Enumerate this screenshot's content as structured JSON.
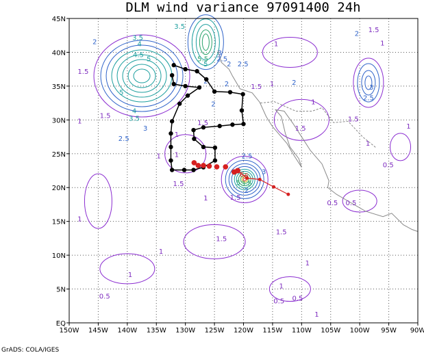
{
  "chart_data": {
    "type": "contour-map",
    "title": "DLM wind variance 97091400 24h",
    "credit": "GrADS: COLA/IGES",
    "x_ticks": [
      "150W",
      "145W",
      "140W",
      "135W",
      "130W",
      "125W",
      "120W",
      "115W",
      "110W",
      "105W",
      "100W",
      "95W",
      "90W"
    ],
    "y_ticks": [
      "EQ",
      "5N",
      "10N",
      "15N",
      "20N",
      "25N",
      "30N",
      "35N",
      "40N",
      "45N"
    ],
    "xlim": [
      -150,
      -90
    ],
    "ylim": [
      0,
      45
    ],
    "grid": true,
    "contour_labels": [
      {
        "text": "3.5",
        "lon": -138.2,
        "lat": 41.8,
        "color": "#1b9e9e"
      },
      {
        "text": "4",
        "lon": -137.9,
        "lat": 40.9,
        "color": "#1b9e9e"
      },
      {
        "text": "4.5",
        "lon": -138.1,
        "lat": 39.3,
        "color": "#1b9e9e"
      },
      {
        "text": "5",
        "lon": -136.3,
        "lat": 38.7,
        "color": "#1b9e9e"
      },
      {
        "text": "5",
        "lon": -141.0,
        "lat": 33.7,
        "color": "#1b9e9e"
      },
      {
        "text": "4",
        "lon": -138.8,
        "lat": 31.0,
        "color": "#1b9e9e"
      },
      {
        "text": "3.5",
        "lon": -138.8,
        "lat": 29.9,
        "color": "#1b9e9e"
      },
      {
        "text": "3",
        "lon": -136.9,
        "lat": 28.4,
        "color": "#2f63c9"
      },
      {
        "text": "2.5",
        "lon": -140.6,
        "lat": 26.9,
        "color": "#2f63c9"
      },
      {
        "text": "2",
        "lon": -145.6,
        "lat": 41.2,
        "color": "#2f63c9"
      },
      {
        "text": "1.5",
        "lon": -147.6,
        "lat": 36.8,
        "color": "#7d2bbf"
      },
      {
        "text": "1.5",
        "lon": -143.8,
        "lat": 30.3,
        "color": "#7d2bbf"
      },
      {
        "text": "1",
        "lon": -148.2,
        "lat": 29.5,
        "color": "#7d2bbf"
      },
      {
        "text": "1",
        "lon": -148.2,
        "lat": 15.0,
        "color": "#7d2bbf"
      },
      {
        "text": "3.5",
        "lon": -131.0,
        "lat": 43.5,
        "color": "#1b9e9e"
      },
      {
        "text": "5.5",
        "lon": -127.0,
        "lat": 38.7,
        "color": "#2aa36b"
      },
      {
        "text": "5",
        "lon": -126.5,
        "lat": 37.9,
        "color": "#1b9e9e"
      },
      {
        "text": "3",
        "lon": -124.1,
        "lat": 39.6,
        "color": "#2f63c9"
      },
      {
        "text": "2.5",
        "lon": -123.7,
        "lat": 38.7,
        "color": "#2f63c9"
      },
      {
        "text": "2",
        "lon": -122.5,
        "lat": 37.9,
        "color": "#2f63c9"
      },
      {
        "text": "2.5",
        "lon": -120.1,
        "lat": 37.9,
        "color": "#2f63c9"
      },
      {
        "text": "2",
        "lon": -126.5,
        "lat": 35.4,
        "color": "#2f63c9"
      },
      {
        "text": "2",
        "lon": -125.2,
        "lat": 32.0,
        "color": "#2f63c9"
      },
      {
        "text": "2",
        "lon": -122.9,
        "lat": 35.0,
        "color": "#2f63c9"
      },
      {
        "text": "1.5",
        "lon": -117.8,
        "lat": 34.6,
        "color": "#7d2bbf"
      },
      {
        "text": "2",
        "lon": -111.3,
        "lat": 35.2,
        "color": "#2f63c9"
      },
      {
        "text": "1",
        "lon": -115.1,
        "lat": 35.0,
        "color": "#7d2bbf"
      },
      {
        "text": "1",
        "lon": -108.0,
        "lat": 32.3,
        "color": "#7d2bbf"
      },
      {
        "text": "1.5",
        "lon": -127.0,
        "lat": 29.2,
        "color": "#7d2bbf"
      },
      {
        "text": "1",
        "lon": -131.5,
        "lat": 27.5,
        "color": "#7d2bbf"
      },
      {
        "text": "1",
        "lon": -134.6,
        "lat": 24.3,
        "color": "#7d2bbf"
      },
      {
        "text": "1",
        "lon": -131.5,
        "lat": 24.5,
        "color": "#7d2bbf"
      },
      {
        "text": "1.5",
        "lon": -131.2,
        "lat": 20.2,
        "color": "#7d2bbf"
      },
      {
        "text": "1",
        "lon": -126.5,
        "lat": 18.1,
        "color": "#7d2bbf"
      },
      {
        "text": "2.5",
        "lon": -119.4,
        "lat": 24.3,
        "color": "#2f63c9"
      },
      {
        "text": "3",
        "lon": -116.5,
        "lat": 22.0,
        "color": "#2f63c9"
      },
      {
        "text": "6",
        "lon": -120.3,
        "lat": 21.6,
        "color": "#d62020"
      },
      {
        "text": "6",
        "lon": -119.5,
        "lat": 21.4,
        "color": "#d62020"
      },
      {
        "text": "5",
        "lon": -120.9,
        "lat": 20.4,
        "color": "#2aa36b"
      },
      {
        "text": "3.5",
        "lon": -119.5,
        "lat": 20.3,
        "color": "#2aa36b"
      },
      {
        "text": "2",
        "lon": -119.5,
        "lat": 19.2,
        "color": "#2f63c9"
      },
      {
        "text": "1.5",
        "lon": -121.4,
        "lat": 18.2,
        "color": "#7d2bbf"
      },
      {
        "text": "1.5",
        "lon": -113.5,
        "lat": 13.1,
        "color": "#7d2bbf"
      },
      {
        "text": "1.5",
        "lon": -123.8,
        "lat": 12.1,
        "color": "#7d2bbf"
      },
      {
        "text": "1",
        "lon": -134.2,
        "lat": 10.2,
        "color": "#7d2bbf"
      },
      {
        "text": "1",
        "lon": -139.5,
        "lat": 6.8,
        "color": "#7d2bbf"
      },
      {
        "text": "0.5",
        "lon": -143.9,
        "lat": 3.6,
        "color": "#7d2bbf"
      },
      {
        "text": "0.5",
        "lon": -113.9,
        "lat": 2.9,
        "color": "#7d2bbf"
      },
      {
        "text": "0.5",
        "lon": -110.7,
        "lat": 3.3,
        "color": "#7d2bbf"
      },
      {
        "text": "1",
        "lon": -113.5,
        "lat": 5.1,
        "color": "#7d2bbf"
      },
      {
        "text": "1",
        "lon": -109.0,
        "lat": 8.5,
        "color": "#7d2bbf"
      },
      {
        "text": "1",
        "lon": -107.4,
        "lat": 0.9,
        "color": "#7d2bbf"
      },
      {
        "text": "1.5",
        "lon": -110.2,
        "lat": 28.4,
        "color": "#7d2bbf"
      },
      {
        "text": "0.5",
        "lon": -104.7,
        "lat": 17.4,
        "color": "#7d2bbf"
      },
      {
        "text": "0.5",
        "lon": -101.5,
        "lat": 17.4,
        "color": "#7d2bbf"
      },
      {
        "text": "0.5",
        "lon": -95.1,
        "lat": 23.0,
        "color": "#7d2bbf"
      },
      {
        "text": "1",
        "lon": -98.6,
        "lat": 26.2,
        "color": "#7d2bbf"
      },
      {
        "text": "1",
        "lon": -91.6,
        "lat": 28.7,
        "color": "#7d2bbf"
      },
      {
        "text": "1.5",
        "lon": -101.1,
        "lat": 29.8,
        "color": "#7d2bbf"
      },
      {
        "text": "2.5",
        "lon": -98.5,
        "lat": 32.9,
        "color": "#2f63c9"
      },
      {
        "text": "3",
        "lon": -98.0,
        "lat": 34.5,
        "color": "#2f63c9"
      },
      {
        "text": "2",
        "lon": -100.5,
        "lat": 42.4,
        "color": "#2f63c9"
      },
      {
        "text": "1.5",
        "lon": -97.6,
        "lat": 43.0,
        "color": "#7d2bbf"
      },
      {
        "text": "1",
        "lon": -114.4,
        "lat": 40.9,
        "color": "#7d2bbf"
      },
      {
        "text": "1",
        "lon": -96.1,
        "lat": 41.0,
        "color": "#7d2bbf"
      }
    ],
    "track_black": [
      [
        -132.0,
        38.1
      ],
      [
        -130.0,
        37.5
      ],
      [
        -128.0,
        37.2
      ],
      [
        -126.4,
        36.0
      ],
      [
        -125.0,
        34.2
      ],
      [
        -122.3,
        34.1
      ],
      [
        -120.1,
        33.8
      ],
      [
        -120.3,
        31.4
      ],
      [
        -120.0,
        29.4
      ],
      [
        -121.9,
        29.3
      ],
      [
        -124.1,
        29.1
      ],
      [
        -126.9,
        28.9
      ],
      [
        -128.6,
        28.5
      ],
      [
        -128.5,
        27.2
      ],
      [
        -126.9,
        26.0
      ],
      [
        -124.9,
        25.9
      ],
      [
        -124.9,
        24.0
      ],
      [
        -126.9,
        23.0
      ],
      [
        -128.6,
        22.6
      ],
      [
        -130.2,
        22.6
      ],
      [
        -132.3,
        22.6
      ],
      [
        -132.5,
        24.0
      ],
      [
        -132.5,
        26.0
      ],
      [
        -132.5,
        28.0
      ],
      [
        -132.3,
        29.8
      ],
      [
        -131.0,
        32.4
      ],
      [
        -129.6,
        33.6
      ],
      [
        -127.6,
        34.8
      ],
      [
        -130.0,
        35.0
      ],
      [
        -132.0,
        35.3
      ],
      [
        -132.3,
        36.6
      ]
    ],
    "track_red": [
      [
        -121.6,
        22.3
      ],
      [
        -121.0,
        22.5
      ],
      [
        -119.4,
        21.4
      ],
      [
        -117.2,
        21.2
      ],
      [
        -114.8,
        20.1
      ],
      [
        -112.3,
        19.0
      ]
    ],
    "track_red_markers": [
      [
        -127.8,
        23.0
      ],
      [
        -126.9,
        23.0
      ],
      [
        -125.9,
        22.9
      ],
      [
        -124.6,
        22.8
      ],
      [
        -123.1,
        22.8
      ],
      [
        -128.5,
        23.4
      ]
    ]
  }
}
